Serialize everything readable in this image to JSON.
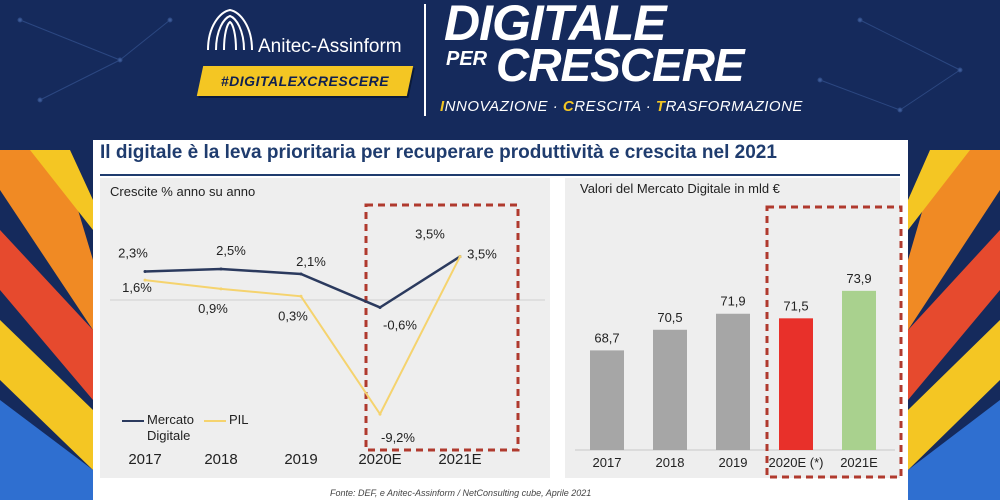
{
  "header": {
    "brand": "Anitec-Assinform",
    "hashtag": "#DIGITALEXCRESCERE",
    "title_line1": "DIGITALE",
    "title_per": "PER",
    "title_line2": "CRESCERE",
    "subtitle": {
      "w1_cap": "I",
      "w1_rest": "NNOVAZIONE",
      "sep": " · ",
      "w2_cap": "C",
      "w2_rest": "RESCITA",
      "w3_cap": "T",
      "w3_rest": "RASFORMAZIONE"
    }
  },
  "slide": {
    "title": "Il digitale è la leva prioritaria per recuperare produttività e crescita nel 2021",
    "source": "Fonte: DEF, e Anitec-Assinform / NetConsulting cube, Aprile  2021"
  },
  "colors": {
    "navy": "#1f3c6e",
    "line_digitale": "#2b3a5e",
    "line_pil": "#f5d36e",
    "bar_grey": "#a6a6a6",
    "bar_red": "#e8302a",
    "bar_green": "#a9d18e",
    "dashed_box": "#b03a2e"
  },
  "chart_data": [
    {
      "type": "line",
      "title": "Crescite % anno su anno",
      "categories": [
        "2017",
        "2018",
        "2019",
        "2020E",
        "2021E"
      ],
      "series": [
        {
          "name": "Mercato Digitale",
          "values": [
            2.3,
            2.5,
            2.1,
            -0.6,
            3.5
          ],
          "labels": [
            "2,3%",
            "2,5%",
            "2,1%",
            "-0,6%",
            "3,5%"
          ]
        },
        {
          "name": "PIL",
          "values": [
            1.6,
            0.9,
            0.3,
            -9.2,
            3.5
          ],
          "labels": [
            "1,6%",
            "0,9%",
            "0,3%",
            "-9,2%",
            "3,5%"
          ]
        }
      ],
      "highlight": [
        "2020E",
        "2021E"
      ]
    },
    {
      "type": "bar",
      "title": "Valori del Mercato Digitale in mld €",
      "categories": [
        "2017",
        "2018",
        "2019",
        "2020E (*)",
        "2021E"
      ],
      "values": [
        68.7,
        70.5,
        71.9,
        71.5,
        73.9
      ],
      "labels": [
        "68,7",
        "70,5",
        "71,9",
        "71,5",
        "73,9"
      ],
      "colors": [
        "#a6a6a6",
        "#a6a6a6",
        "#a6a6a6",
        "#e8302a",
        "#a9d18e"
      ],
      "highlight": [
        "2020E (*)",
        "2021E"
      ]
    }
  ]
}
